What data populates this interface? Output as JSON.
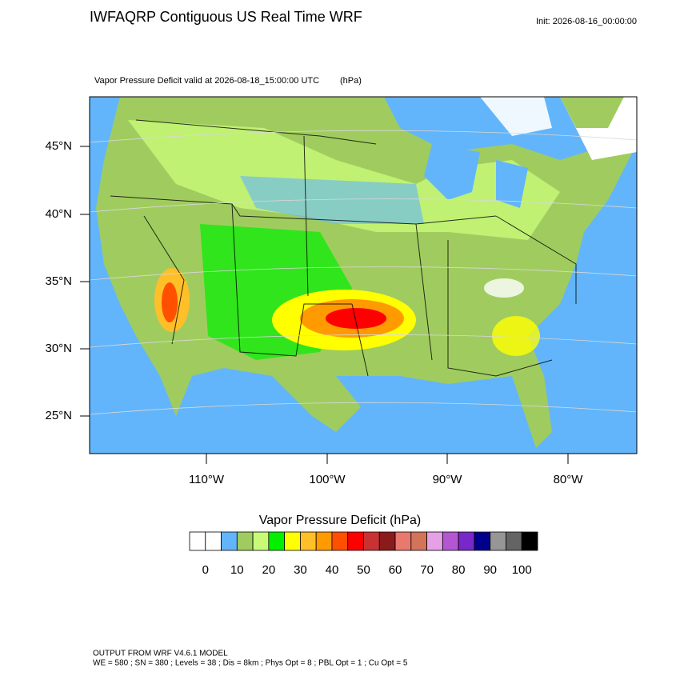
{
  "header": {
    "title": "IWFAQRP Contiguous US Real Time WRF",
    "init": "Init: 2026-08-16_00:00:00",
    "subtitle": "Vapor Pressure Deficit valid at 2026-08-18_15:00:00 UTC",
    "units": "(hPa)"
  },
  "map": {
    "lat_labels": [
      "45°N",
      "40°N",
      "35°N",
      "30°N",
      "25°N"
    ],
    "lon_labels": [
      "110°W",
      "100°W",
      "90°W",
      "80°W"
    ]
  },
  "colorbar": {
    "title": "Vapor Pressure Deficit  (hPa)",
    "colors": [
      "#ffffff",
      "#ffffff",
      "#62b5fa",
      "#a0cc5f",
      "#c8fa78",
      "#00f000",
      "#ffff00",
      "#ffbf28",
      "#ff9a00",
      "#ff5000",
      "#ff0000",
      "#c83232",
      "#8b1a1a",
      "#e9786f",
      "#d2735a",
      "#e6a0e6",
      "#b455d2",
      "#7828c8",
      "#00008c",
      "#969696",
      "#646464",
      "#000000"
    ],
    "labels": [
      0,
      10,
      20,
      30,
      40,
      50,
      60,
      70,
      80,
      90,
      100
    ]
  },
  "footer": {
    "line1": "OUTPUT FROM WRF V4.6.1 MODEL",
    "line2": "WE = 580 ; SN = 380 ; Levels = 38 ; Dis = 8km ; Phys Opt = 8 ; PBL Opt = 1 ; Cu Opt = 5"
  }
}
